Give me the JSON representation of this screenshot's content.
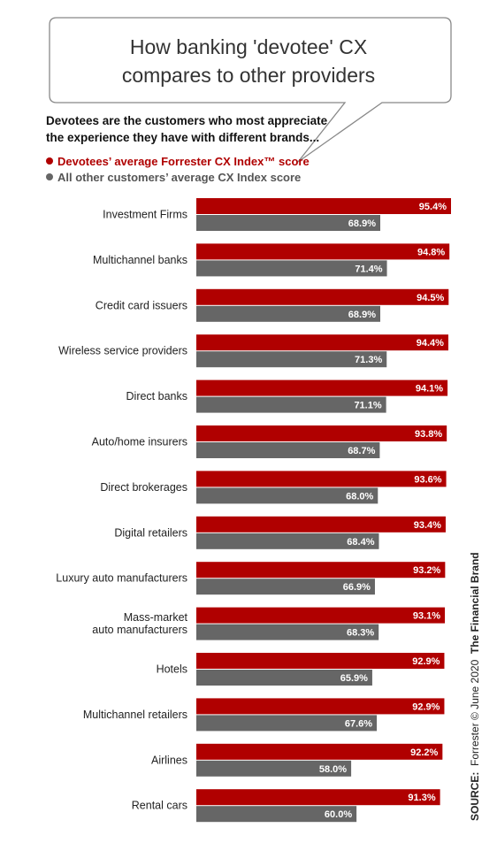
{
  "title": {
    "line1": "How banking 'devotee' CX",
    "line2": "compares to other providers"
  },
  "subtitle": {
    "line1": "Devotees are the customers who most appreciate",
    "line2": "the experience they have with different brands..."
  },
  "legend": {
    "devotees": "Devotees’ average Forrester CX Index™ score",
    "others": "All other customers’ average CX Index score"
  },
  "source": {
    "label": "SOURCE:",
    "text": "Forrester © June 2020",
    "brand": "The Financial Brand"
  },
  "colors": {
    "devotees": "#b00000",
    "others": "#666666"
  },
  "chart_data": {
    "type": "bar",
    "orientation": "horizontal",
    "categories": [
      [
        "Investment Firms"
      ],
      [
        "Multichannel banks"
      ],
      [
        "Credit card issuers"
      ],
      [
        "Wireless service providers"
      ],
      [
        "Direct banks"
      ],
      [
        "Auto/home insurers"
      ],
      [
        "Direct brokerages"
      ],
      [
        "Digital retailers"
      ],
      [
        "Luxury auto manufacturers"
      ],
      [
        "Mass-market",
        "auto manufacturers"
      ],
      [
        "Hotels"
      ],
      [
        "Multichannel retailers"
      ],
      [
        "Airlines"
      ],
      [
        "Rental cars"
      ]
    ],
    "series": [
      {
        "name": "Devotees’ average Forrester CX Index™ score",
        "values": [
          95.4,
          94.8,
          94.5,
          94.4,
          94.1,
          93.8,
          93.6,
          93.4,
          93.2,
          93.1,
          92.9,
          92.9,
          92.2,
          91.3
        ]
      },
      {
        "name": "All other customers’ average CX Index score",
        "values": [
          68.9,
          71.4,
          68.9,
          71.3,
          71.1,
          68.7,
          68.0,
          68.4,
          66.9,
          68.3,
          65.9,
          67.6,
          58.0,
          60.0
        ]
      }
    ],
    "value_suffix": "%",
    "xlim": [
      0,
      100
    ],
    "grid": false,
    "legend_position": "top-left"
  }
}
